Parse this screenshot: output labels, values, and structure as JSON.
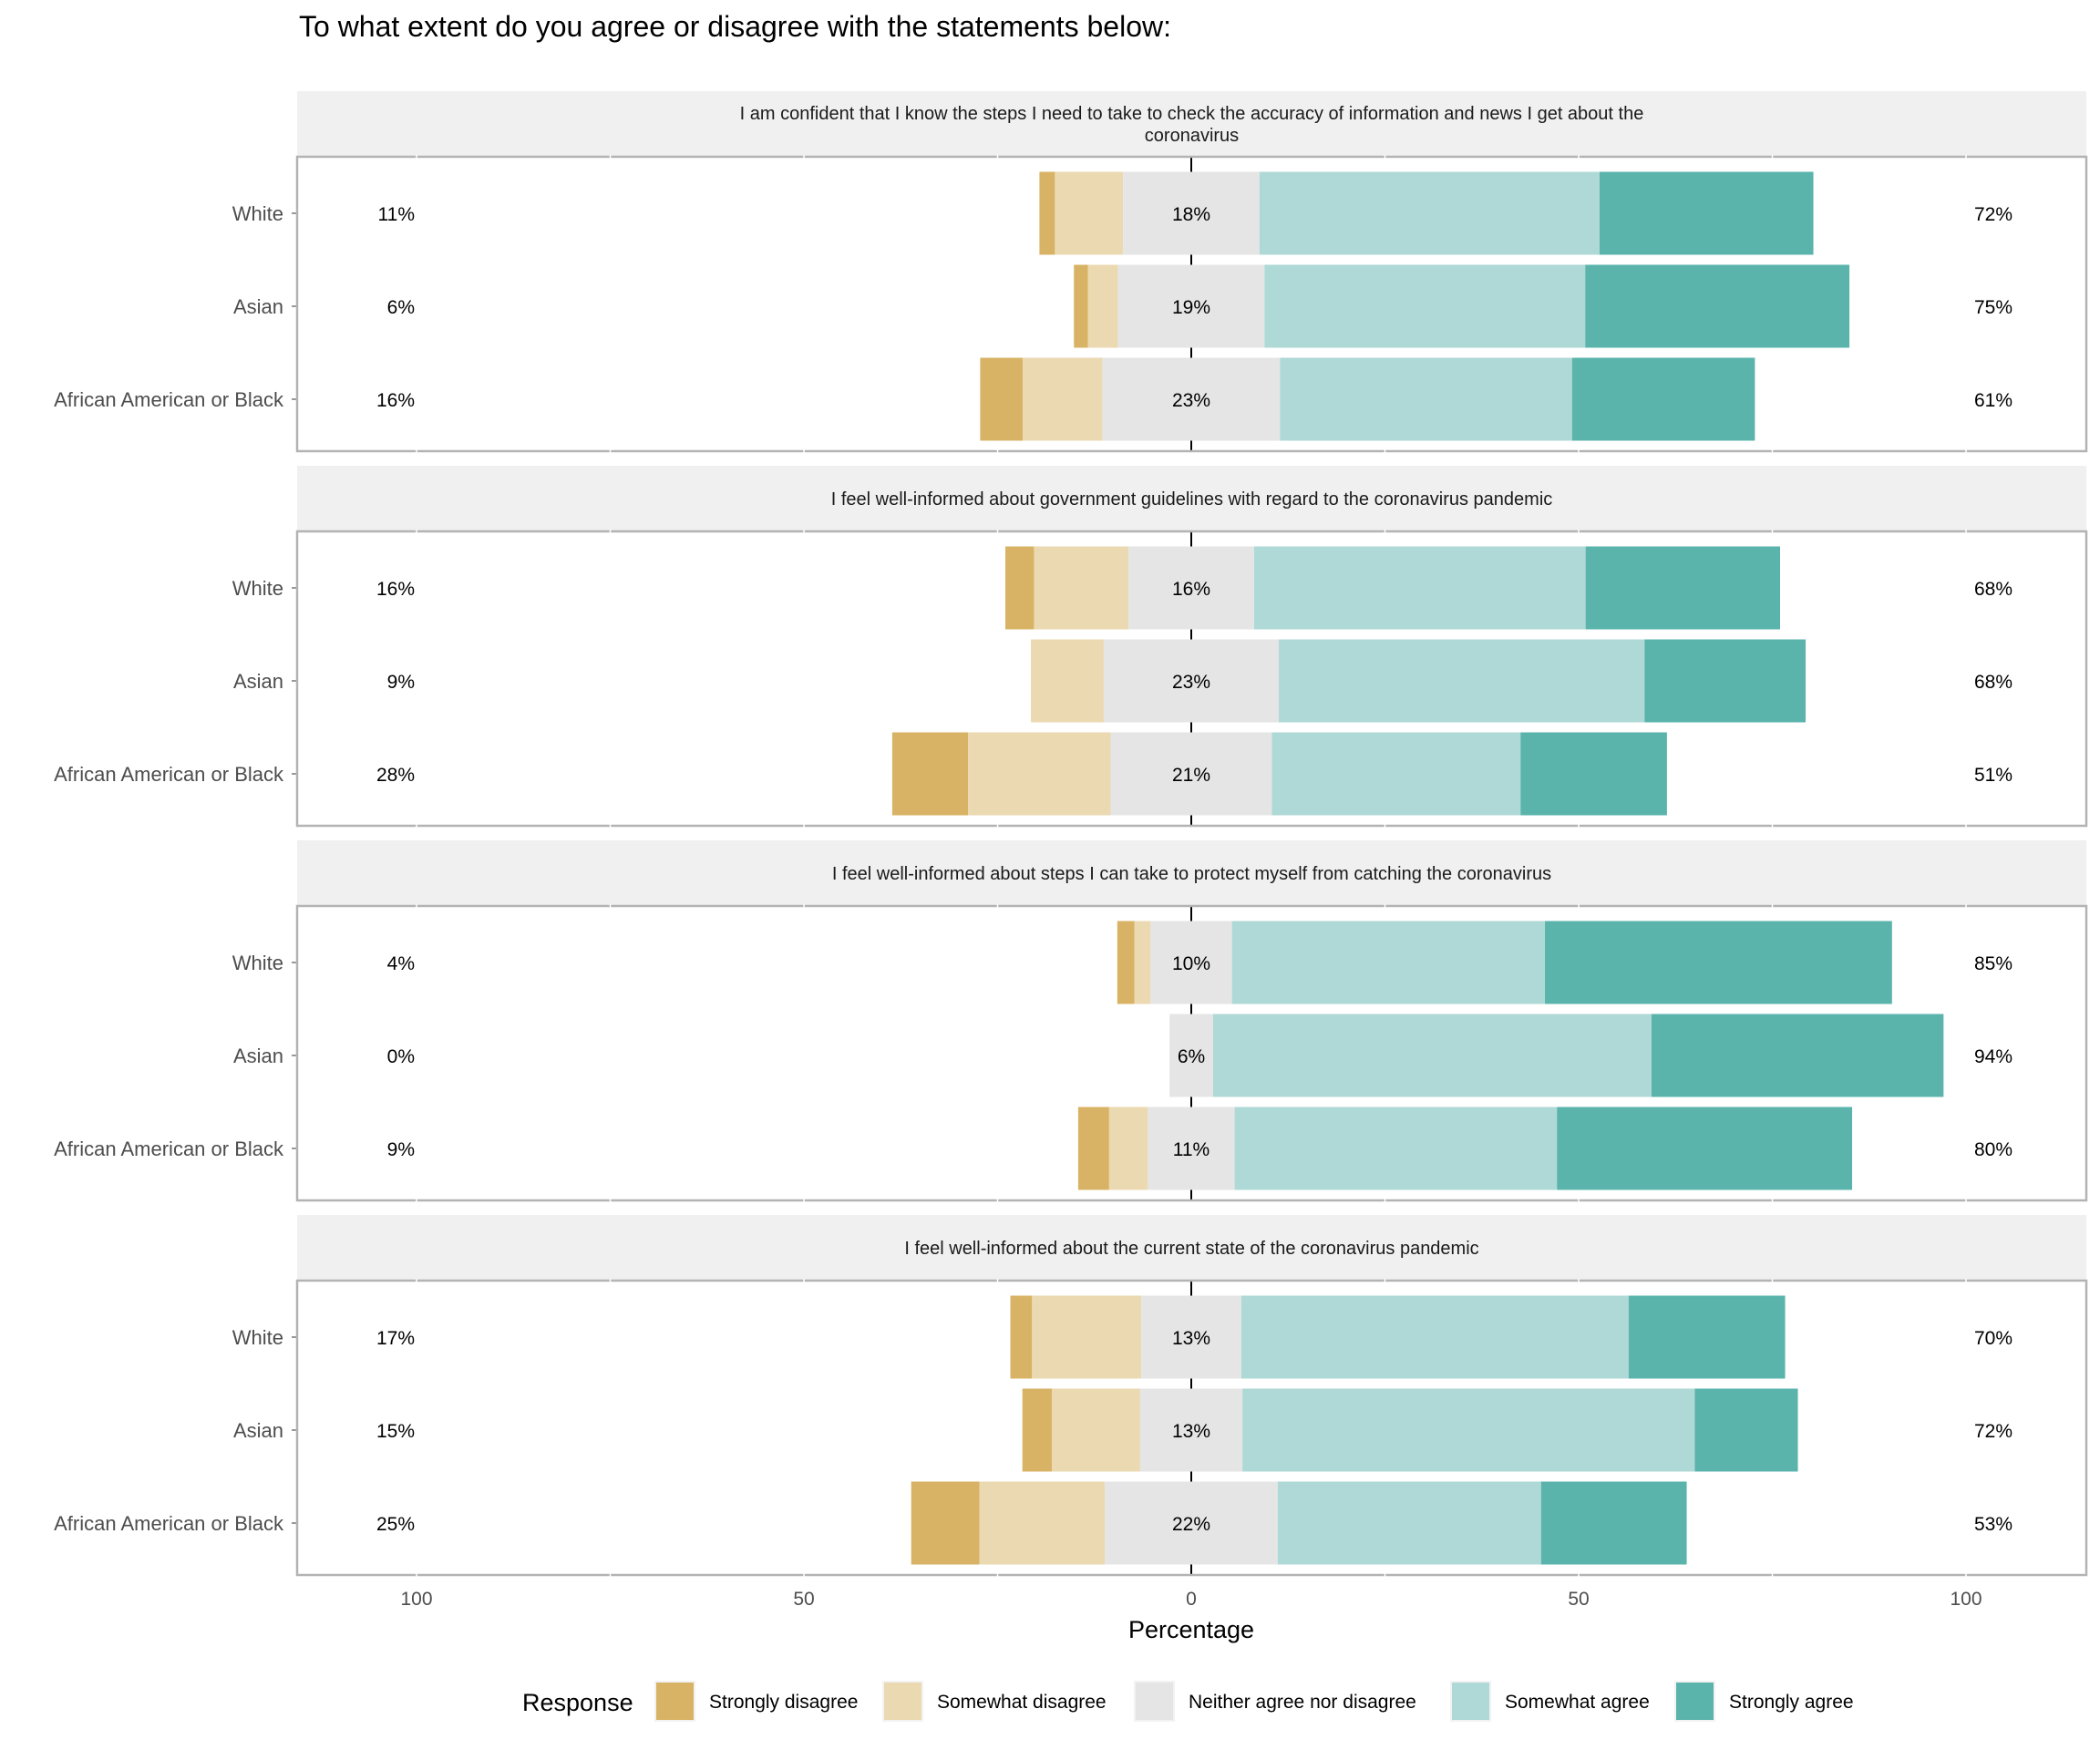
{
  "chart_data": {
    "type": "bar",
    "subtype": "diverging-stacked-horizontal",
    "title": "To what extent do you agree or disagree with the statements below:",
    "xlabel": "Percentage",
    "ylabel": "",
    "xlim": [
      -100,
      100
    ],
    "x_ticks": [
      -100,
      -50,
      0,
      50,
      100
    ],
    "x_tick_labels": [
      "100",
      "50",
      "0",
      "50",
      "100"
    ],
    "grid": true,
    "legend": {
      "title": "Response",
      "placement": "bottom",
      "entries": [
        "Strongly disagree",
        "Somewhat disagree",
        "Neither agree nor disagree",
        "Somewhat agree",
        "Strongly agree"
      ]
    },
    "colors": {
      "Strongly disagree": "#D8B365",
      "Somewhat disagree": "#EBD9B2",
      "Neither agree nor disagree": "#E5E5E5",
      "Somewhat agree": "#AFD9D6",
      "Strongly agree": "#5AB4AC"
    },
    "categories": [
      "White",
      "Asian",
      "African American or Black"
    ],
    "panels": [
      {
        "statement": "I am confident that I know the steps I need to take to check the accuracy of information and news I get about the coronavirus",
        "statement_lines": [
          "I am confident that I know the steps I need to take to check the accuracy of information and news I get about the",
          "coronavirus"
        ],
        "rows": [
          {
            "group": "White",
            "values": [
              2.0,
              8.8,
              17.6,
              43.9,
              27.6
            ],
            "disagree_label": "11%",
            "neutral_label": "18%",
            "agree_label": "72%"
          },
          {
            "group": "Asian",
            "values": [
              1.8,
              3.9,
              18.9,
              41.4,
              34.1
            ],
            "disagree_label": "6%",
            "neutral_label": "19%",
            "agree_label": "75%"
          },
          {
            "group": "African American or Black",
            "values": [
              5.5,
              10.3,
              22.9,
              37.7,
              23.6
            ],
            "disagree_label": "16%",
            "neutral_label": "23%",
            "agree_label": "61%"
          }
        ]
      },
      {
        "statement": "I feel well-informed about government guidelines with regard to the coronavirus pandemic",
        "statement_lines": [
          "I feel well-informed about government guidelines with regard to the coronavirus pandemic"
        ],
        "rows": [
          {
            "group": "White",
            "values": [
              3.7,
              12.2,
              16.2,
              42.8,
              25.1
            ],
            "disagree_label": "16%",
            "neutral_label": "16%",
            "agree_label": "68%"
          },
          {
            "group": "Asian",
            "values": [
              0.0,
              9.4,
              22.6,
              47.2,
              20.8
            ],
            "disagree_label": "9%",
            "neutral_label": "23%",
            "agree_label": "68%"
          },
          {
            "group": "African American or Black",
            "values": [
              9.8,
              18.4,
              20.8,
              32.1,
              18.9
            ],
            "disagree_label": "28%",
            "neutral_label": "21%",
            "agree_label": "51%"
          }
        ]
      },
      {
        "statement": "I feel well-informed about steps I can take to protect myself from catching the coronavirus",
        "statement_lines": [
          "I feel well-informed about steps I can take to protect myself from catching the coronavirus"
        ],
        "rows": [
          {
            "group": "White",
            "values": [
              2.2,
              2.1,
              10.5,
              40.4,
              44.8
            ],
            "disagree_label": "4%",
            "neutral_label": "10%",
            "agree_label": "85%"
          },
          {
            "group": "Asian",
            "values": [
              0.0,
              0.0,
              5.6,
              56.6,
              37.7
            ],
            "disagree_label": "0%",
            "neutral_label": "6%",
            "agree_label": "94%"
          },
          {
            "group": "African American or Black",
            "values": [
              4.0,
              5.0,
              11.2,
              41.6,
              38.1
            ],
            "disagree_label": "9%",
            "neutral_label": "11%",
            "agree_label": "80%"
          }
        ]
      },
      {
        "statement": "I feel well-informed about the current state of the coronavirus pandemic",
        "statement_lines": [
          "I feel well-informed about the current state of the coronavirus pandemic"
        ],
        "rows": [
          {
            "group": "White",
            "values": [
              2.8,
              14.1,
              12.9,
              50.0,
              20.2
            ],
            "disagree_label": "17%",
            "neutral_label": "13%",
            "agree_label": "70%"
          },
          {
            "group": "Asian",
            "values": [
              3.8,
              11.4,
              13.2,
              58.4,
              13.3
            ],
            "disagree_label": "15%",
            "neutral_label": "13%",
            "agree_label": "72%"
          },
          {
            "group": "African American or Black",
            "values": [
              8.8,
              16.2,
              22.3,
              34.0,
              18.8
            ],
            "disagree_label": "25%",
            "neutral_label": "22%",
            "agree_label": "53%"
          }
        ]
      }
    ]
  }
}
